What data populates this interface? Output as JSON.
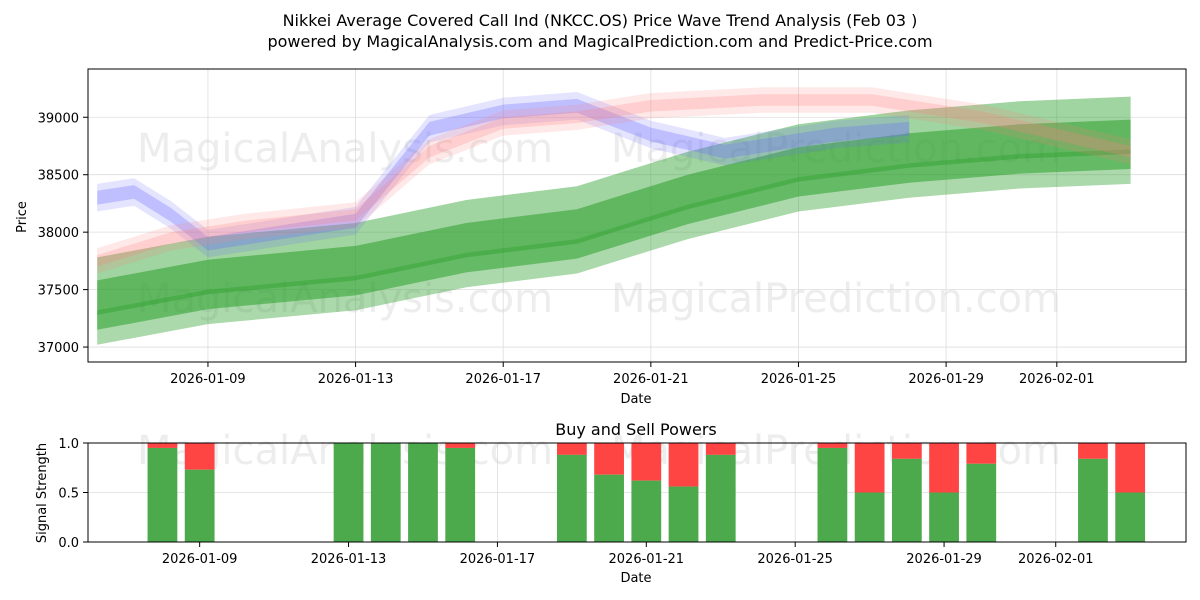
{
  "chart_data": [
    {
      "type": "area",
      "title_line1": "Nikkei Average Covered Call Ind (NKCC.OS) Price Wave Trend Analysis (Feb 03 )",
      "title_line2": "powered by MagicalAnalysis.com and MagicalPrediction.com and Predict-Price.com",
      "xlabel": "Date",
      "ylabel": "Price",
      "xlim": [
        "2026-01-05T18:00",
        "2026-02-04T12:00"
      ],
      "ylim": [
        36870,
        39420
      ],
      "x_tick_labels": [
        "2026-01-09",
        "2026-01-13",
        "2026-01-17",
        "2026-01-21",
        "2026-01-25",
        "2026-01-29",
        "2026-02-01"
      ],
      "x_tick_dates": [
        "2026-01-09",
        "2026-01-13",
        "2026-01-17",
        "2026-01-21",
        "2026-01-25",
        "2026-01-29",
        "2026-02-01"
      ],
      "y_ticks": [
        37000,
        37500,
        38000,
        38500,
        39000
      ],
      "grid": true,
      "series": [
        {
          "name": "green-wave-bands",
          "color": "#2ca02c",
          "dates": [
            "2026-01-06",
            "2026-01-09",
            "2026-01-13",
            "2026-01-16",
            "2026-01-19",
            "2026-01-22",
            "2026-01-25",
            "2026-01-28",
            "2026-01-31",
            "2026-02-03"
          ],
          "values": [
            37400,
            37580,
            37700,
            37900,
            38020,
            38320,
            38560,
            38680,
            38760,
            38800
          ],
          "bands": [
            {
              "lower_offset": -380,
              "upper_offset": -80,
              "alpha": 0.4
            },
            {
              "lower_offset": -250,
              "upper_offset": 180,
              "alpha": 0.55
            },
            {
              "lower_offset": -120,
              "upper_offset": 380,
              "alpha": 0.45
            }
          ]
        },
        {
          "name": "blue-wave-bands",
          "color": "#6b6bff",
          "dates": [
            "2026-01-06",
            "2026-01-07",
            "2026-01-08",
            "2026-01-09",
            "2026-01-11",
            "2026-01-13",
            "2026-01-15",
            "2026-01-17",
            "2026-01-19",
            "2026-01-21",
            "2026-01-23",
            "2026-01-26",
            "2026-01-28"
          ],
          "values": [
            38300,
            38350,
            38150,
            37900,
            38000,
            38100,
            38900,
            39050,
            39100,
            38850,
            38700,
            38850,
            38900
          ],
          "bands": [
            {
              "lower_offset": -120,
              "upper_offset": 120,
              "alpha": 0.18
            },
            {
              "lower_offset": -60,
              "upper_offset": 60,
              "alpha": 0.3
            }
          ]
        },
        {
          "name": "red-wave-bands",
          "color": "#ff7f7f",
          "dates": [
            "2026-01-06",
            "2026-01-08",
            "2026-01-10",
            "2026-01-13",
            "2026-01-15",
            "2026-01-17",
            "2026-01-19",
            "2026-01-21",
            "2026-01-24",
            "2026-01-27",
            "2026-01-30",
            "2026-02-03"
          ],
          "values": [
            37750,
            37950,
            38050,
            38150,
            38700,
            38950,
            39000,
            39100,
            39150,
            39150,
            39000,
            38700
          ],
          "bands": [
            {
              "lower_offset": -110,
              "upper_offset": 110,
              "alpha": 0.18
            },
            {
              "lower_offset": -50,
              "upper_offset": 50,
              "alpha": 0.25
            }
          ]
        }
      ],
      "watermarks": [
        "MagicalAnalysis.com",
        "MagicalPrediction.com",
        "MagicalAnalysis.com",
        "MagicalPrediction.com"
      ]
    },
    {
      "type": "bar",
      "title": "Buy and Sell Powers",
      "xlabel": "Date",
      "ylabel": "Signal Strength",
      "ylim": [
        0,
        1
      ],
      "y_ticks": [
        "0.0",
        "0.5",
        "1.0"
      ],
      "x_tick_labels": [
        "2026-01-09",
        "2026-01-13",
        "2026-01-17",
        "2026-01-21",
        "2026-01-25",
        "2026-01-29",
        "2026-02-01"
      ],
      "x_tick_dates": [
        "2026-01-09",
        "2026-01-13",
        "2026-01-17",
        "2026-01-21",
        "2026-01-25",
        "2026-01-29",
        "2026-02-01"
      ],
      "xlim": [
        "2026-01-06T00:00",
        "2026-02-04T12:00"
      ],
      "buy_color": "#4caa4c",
      "sell_color": "#ff4444",
      "dates": [
        "2026-01-08",
        "2026-01-09",
        "2026-01-13",
        "2026-01-14",
        "2026-01-15",
        "2026-01-16",
        "2026-01-19",
        "2026-01-20",
        "2026-01-21",
        "2026-01-22",
        "2026-01-23",
        "2026-01-26",
        "2026-01-27",
        "2026-01-28",
        "2026-01-29",
        "2026-01-30",
        "2026-02-02",
        "2026-02-03"
      ],
      "buy": [
        0.95,
        0.73,
        1.0,
        1.0,
        1.0,
        0.95,
        0.88,
        0.68,
        0.62,
        0.56,
        0.88,
        0.95,
        0.5,
        0.84,
        0.5,
        0.79,
        0.84,
        0.5
      ],
      "watermarks": [
        "MagicalAnalysis.com",
        "MagicalPrediction.com"
      ]
    }
  ]
}
